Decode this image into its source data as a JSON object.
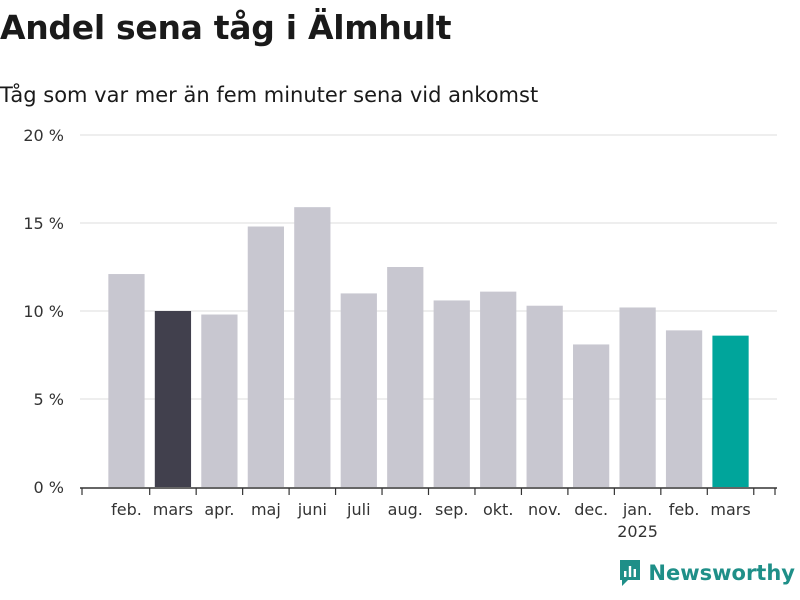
{
  "header": {
    "title": "Andel sena tåg i Älmhult",
    "subtitle": "Tåg som var mer än fem minuter sena vid ankomst"
  },
  "brand": {
    "name": "Newsworthy",
    "icon": "newsworthy-logo-icon",
    "color": "#1f8f88"
  },
  "colors": {
    "default_bar": "#c8c7d0",
    "previous_year_bar": "#41404d",
    "current_bar": "#00a59b",
    "grid": "#dddddd",
    "axis": "#333333"
  },
  "chart_data": {
    "type": "bar",
    "title": "Andel sena tåg i Älmhult",
    "subtitle": "Tåg som var mer än fem minuter sena vid ankomst",
    "xlabel": "",
    "ylabel": "",
    "categories": [
      "feb.",
      "mars",
      "apr.",
      "maj",
      "juni",
      "juli",
      "aug.",
      "sep.",
      "okt.",
      "nov.",
      "dec.",
      "jan.",
      "feb.",
      "mars"
    ],
    "year_labels": [
      "",
      "",
      "",
      "",
      "",
      "",
      "",
      "",
      "",
      "",
      "",
      "2025",
      "",
      ""
    ],
    "values": [
      12.1,
      10.0,
      9.8,
      14.8,
      15.9,
      11.0,
      12.5,
      10.6,
      11.1,
      10.3,
      8.1,
      10.2,
      8.9,
      8.6
    ],
    "highlight": [
      "default",
      "previous_year",
      "default",
      "default",
      "default",
      "default",
      "default",
      "default",
      "default",
      "default",
      "default",
      "default",
      "default",
      "current"
    ],
    "ylim": [
      0,
      20
    ],
    "yticks": [
      0,
      5,
      10,
      15,
      20
    ],
    "ytick_labels": [
      "0 %",
      "5 %",
      "10 %",
      "15 %",
      "20 %"
    ],
    "grid": true,
    "legend": "none"
  }
}
